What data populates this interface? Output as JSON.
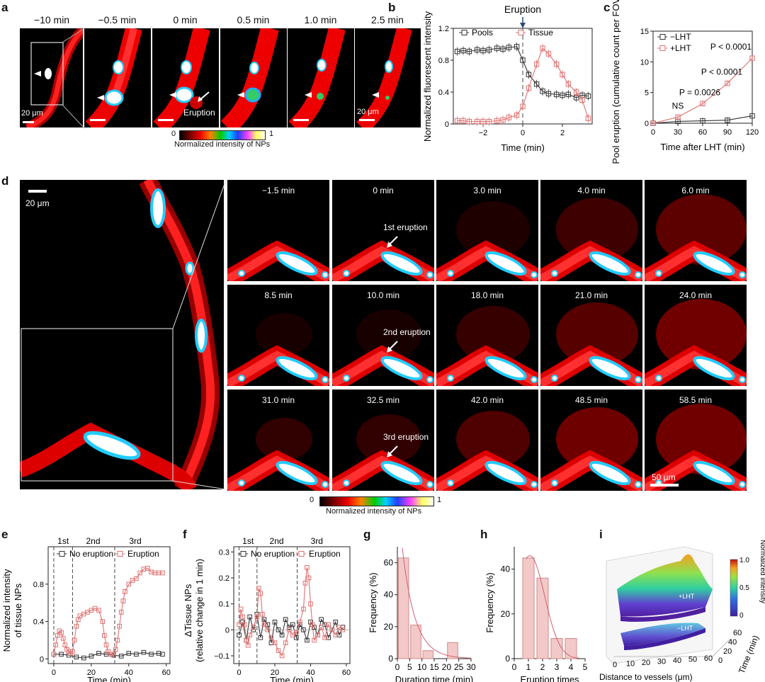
{
  "panel_labels": {
    "a": "a",
    "b": "b",
    "c": "c",
    "d": "d",
    "e": "e",
    "f": "f",
    "g": "g",
    "h": "h",
    "i": "i"
  },
  "panel_a": {
    "times": [
      "−10 min",
      "−0.5 min",
      "0 min",
      "0.5 min",
      "1.0 min",
      "2.5 min"
    ],
    "scale_left": "20 μm",
    "scale_right": "20 μm",
    "eruption_label": "Eruption",
    "colorbar_min": "0",
    "colorbar_max": "1",
    "colorbar_label": "Normalized intensity of NPs"
  },
  "panel_d": {
    "scale_top": "20 μm",
    "scale_bottom": "50 μm",
    "frames": [
      [
        "−1.5 min",
        "0 min",
        "3.0 min",
        "4.0 min",
        "6.0 min"
      ],
      [
        "8.5 min",
        "10.0 min",
        "18.0 min",
        "21.0 min",
        "24.0 min"
      ],
      [
        "31.0 min",
        "32.5 min",
        "42.0 min",
        "48.5 min",
        "58.5 min"
      ]
    ],
    "eruption_labels": [
      "1st eruption",
      "2nd eruption",
      "3rd eruption"
    ],
    "colorbar_min": "0",
    "colorbar_max": "1",
    "colorbar_label": "Normalized intensity of NPs"
  },
  "panel_i": {
    "colorbar_title": "Normalized intensity",
    "colorbar_ticks": [
      "1.0",
      "0.5",
      "0"
    ],
    "surface_labels": [
      "+LHT",
      "−LHT"
    ],
    "xlabel": "Distance to vessels (μm)",
    "ylabel": "Time (min)",
    "xticks": [
      "0",
      "10",
      "20",
      "30",
      "40",
      "50",
      "60"
    ],
    "yticks": [
      "0",
      "20",
      "40",
      "60"
    ]
  },
  "chart_data": [
    {
      "id": "b",
      "type": "line",
      "title": "Eruption",
      "xlabel": "Time (min)",
      "ylabel": "Normalized fluorescent intensity",
      "xlim": [
        -3.5,
        3.5
      ],
      "ylim": [
        0,
        1.2
      ],
      "xticks": [
        "−2",
        "0",
        "2"
      ],
      "xtick_values": [
        -2,
        0,
        2
      ],
      "yticks": [
        "0",
        "0.4",
        "0.8",
        "1.2"
      ],
      "ytick_values": [
        0,
        0.4,
        0.8,
        1.2
      ],
      "legend": "top",
      "series": [
        {
          "name": "Pools",
          "color": "#333333",
          "x": [
            -3.3,
            -3.0,
            -2.7,
            -2.3,
            -2.0,
            -1.7,
            -1.3,
            -1.0,
            -0.7,
            -0.3,
            0,
            0.3,
            0.7,
            1.0,
            1.3,
            1.7,
            2.0,
            2.3,
            2.7,
            3.0,
            3.3
          ],
          "y": [
            0.91,
            0.92,
            0.91,
            0.93,
            0.92,
            0.93,
            0.95,
            0.94,
            0.96,
            0.97,
            0.8,
            0.62,
            0.5,
            0.41,
            0.38,
            0.37,
            0.36,
            0.37,
            0.33,
            0.36,
            0.35
          ]
        },
        {
          "name": "Tissue",
          "color": "#e07070",
          "x": [
            -3.3,
            -3.0,
            -2.7,
            -2.3,
            -2.0,
            -1.7,
            -1.3,
            -1.0,
            -0.7,
            -0.3,
            0,
            0.3,
            0.7,
            1.0,
            1.3,
            1.7,
            2.0,
            2.3,
            2.7,
            3.0,
            3.3
          ],
          "y": [
            0.04,
            0.04,
            0.03,
            0.03,
            0.03,
            0.03,
            0.04,
            0.05,
            0.08,
            0.11,
            0.22,
            0.45,
            0.75,
            0.95,
            0.88,
            0.75,
            0.62,
            0.5,
            0.4,
            0.3,
            0.07
          ]
        }
      ]
    },
    {
      "id": "c",
      "type": "line",
      "xlabel": "Time after LHT (min)",
      "ylabel": "Pool eruption (cumulative count per FOV)",
      "xlim": [
        0,
        120
      ],
      "ylim": [
        0,
        15
      ],
      "xticks": [
        "0",
        "30",
        "60",
        "90",
        "120"
      ],
      "xtick_values": [
        0,
        30,
        60,
        90,
        120
      ],
      "yticks": [
        "0",
        "5",
        "10",
        "15"
      ],
      "ytick_values": [
        0,
        5,
        10,
        15
      ],
      "legend": "top-left",
      "series": [
        {
          "name": "−LHT",
          "color": "#333333",
          "x": [
            0,
            30,
            60,
            90,
            120
          ],
          "y": [
            0,
            0.3,
            0.4,
            0.5,
            1.2
          ]
        },
        {
          "name": "+LHT",
          "color": "#e07070",
          "x": [
            0,
            30,
            60,
            90,
            120
          ],
          "y": [
            0,
            1.0,
            3.2,
            6.5,
            10.6
          ]
        }
      ],
      "annotations": [
        "NS",
        "P = 0.0026",
        "P < 0.0001",
        "P < 0.0001"
      ]
    },
    {
      "id": "e",
      "type": "line",
      "xlabel": "Time (min)",
      "ylabel": "Normalized intensity of tissue NPs",
      "xlim": [
        -3,
        62
      ],
      "ylim": [
        -0.05,
        1.2
      ],
      "xticks": [
        "0",
        "20",
        "40",
        "60"
      ],
      "xtick_values": [
        0,
        20,
        40,
        60
      ],
      "yticks": [
        "0",
        "0.4",
        "0.8"
      ],
      "ytick_values": [
        0,
        0.4,
        0.8
      ],
      "phase_labels": [
        "1st",
        "2nd",
        "3rd"
      ],
      "phase_lines": [
        0,
        10,
        32.5
      ],
      "legend": "top",
      "series": [
        {
          "name": "No eruption",
          "color": "#333333",
          "x": [
            0,
            4,
            8,
            12,
            16,
            20,
            24,
            28,
            32,
            36,
            40,
            44,
            48,
            52,
            56,
            58
          ],
          "y": [
            0.05,
            0.05,
            0.04,
            0.02,
            0.01,
            0.03,
            0.06,
            0.05,
            0.04,
            0.03,
            0.06,
            0.05,
            0.07,
            0.05,
            0.06,
            0.05
          ]
        },
        {
          "name": "Eruption",
          "color": "#e07070",
          "x": [
            0,
            1,
            2,
            3,
            4,
            5,
            6,
            7,
            8,
            9,
            10,
            11,
            12,
            13,
            14,
            16,
            18,
            20,
            22,
            24,
            26,
            27,
            28,
            29,
            30,
            31,
            32,
            33,
            34,
            35,
            36,
            37,
            38,
            40,
            42,
            44,
            46,
            48,
            50,
            52,
            54,
            56,
            58
          ],
          "y": [
            0.05,
            0.15,
            0.25,
            0.3,
            0.28,
            0.22,
            0.15,
            0.1,
            0.08,
            0.06,
            0.08,
            0.2,
            0.35,
            0.42,
            0.46,
            0.48,
            0.5,
            0.52,
            0.54,
            0.52,
            0.4,
            0.25,
            0.15,
            0.08,
            0.05,
            0.05,
            0.05,
            0.1,
            0.2,
            0.35,
            0.5,
            0.62,
            0.72,
            0.8,
            0.84,
            0.86,
            0.92,
            0.96,
            0.97,
            0.93,
            0.92,
            0.92,
            0.92
          ]
        }
      ]
    },
    {
      "id": "f",
      "type": "line",
      "xlabel": "Time (min)",
      "ylabel": "ΔTissue NPs (relative change in 1 min)",
      "xlim": [
        -3,
        62
      ],
      "ylim": [
        -0.13,
        0.32
      ],
      "xticks": [
        "0",
        "20",
        "40",
        "60"
      ],
      "xtick_values": [
        0,
        20,
        40,
        60
      ],
      "yticks": [
        "−0.1",
        "0",
        "0.1",
        "0.2",
        "0.3"
      ],
      "ytick_values": [
        -0.1,
        0,
        0.1,
        0.2,
        0.3
      ],
      "phase_labels": [
        "1st",
        "2nd",
        "3rd"
      ],
      "phase_lines": [
        0,
        10,
        32.5
      ],
      "legend": "top",
      "series": [
        {
          "name": "No eruption",
          "color": "#333333",
          "x": [
            0,
            2,
            4,
            6,
            8,
            10,
            12,
            14,
            16,
            18,
            20,
            22,
            24,
            26,
            28,
            30,
            32,
            34,
            36,
            38,
            40,
            42,
            44,
            46,
            48,
            50,
            52,
            54,
            56,
            58
          ],
          "y": [
            -0.02,
            0.03,
            -0.04,
            0.05,
            0.0,
            0.06,
            -0.03,
            0.04,
            0.02,
            -0.05,
            0.03,
            0.0,
            -0.02,
            0.04,
            0.01,
            0.02,
            -0.03,
            0.02,
            0.0,
            -0.04,
            0.03,
            0.01,
            -0.02,
            0.04,
            0.02,
            -0.03,
            0.0,
            0.03,
            -0.02,
            0.01
          ]
        },
        {
          "name": "Eruption",
          "color": "#e07070",
          "x": [
            0,
            1,
            2,
            3,
            4,
            5,
            6,
            8,
            10,
            11,
            12,
            13,
            14,
            16,
            18,
            20,
            22,
            24,
            26,
            28,
            30,
            32,
            34,
            36,
            37,
            38,
            39,
            40,
            41,
            42,
            44,
            46,
            48,
            50,
            52,
            54,
            56,
            58
          ],
          "y": [
            0.02,
            0.08,
            0.05,
            0.02,
            -0.04,
            -0.06,
            -0.02,
            0.01,
            0.05,
            0.16,
            0.14,
            0.06,
            0.02,
            0.0,
            -0.03,
            -0.05,
            -0.08,
            -0.1,
            -0.05,
            0.0,
            -0.02,
            -0.01,
            0.03,
            0.08,
            0.18,
            0.24,
            0.2,
            0.1,
            0.02,
            -0.04,
            -0.02,
            0.01,
            -0.03,
            0.02,
            0.0,
            -0.02,
            0.01,
            0.0
          ]
        }
      ]
    },
    {
      "id": "g",
      "type": "bar",
      "xlabel": "Duration time (min)",
      "ylabel": "Frequency (%)",
      "xlim": [
        0,
        30
      ],
      "ylim": [
        0,
        70
      ],
      "xticks": [
        "0",
        "5",
        "10",
        "15",
        "20",
        "25",
        "30"
      ],
      "xtick_values": [
        0,
        5,
        10,
        15,
        20,
        25,
        30
      ],
      "yticks": [
        "0",
        "20",
        "40",
        "60"
      ],
      "ytick_values": [
        0,
        20,
        40,
        60
      ],
      "categories": [
        "2.5",
        "7.5",
        "12.5",
        "17.5",
        "22.5",
        "27.5"
      ],
      "bin_centers": [
        2.5,
        7.5,
        12.5,
        17.5,
        22.5,
        27.5
      ],
      "values": [
        63,
        21,
        5,
        0,
        10,
        0
      ],
      "fit": "exponential"
    },
    {
      "id": "h",
      "type": "bar",
      "xlabel": "Eruption times",
      "ylabel": "Frequency (%)",
      "xlim": [
        0,
        5
      ],
      "ylim": [
        0,
        50
      ],
      "xticks": [
        "0",
        "1",
        "2",
        "3",
        "4",
        "5"
      ],
      "xtick_values": [
        0,
        1,
        2,
        3,
        4,
        5
      ],
      "yticks": [
        "0",
        "20",
        "40"
      ],
      "ytick_values": [
        0,
        20,
        40
      ],
      "categories": [
        "1",
        "2",
        "3",
        "4"
      ],
      "bin_centers": [
        1,
        2,
        3,
        4
      ],
      "values": [
        45,
        36,
        9,
        9
      ],
      "fit": "gaussian"
    }
  ]
}
